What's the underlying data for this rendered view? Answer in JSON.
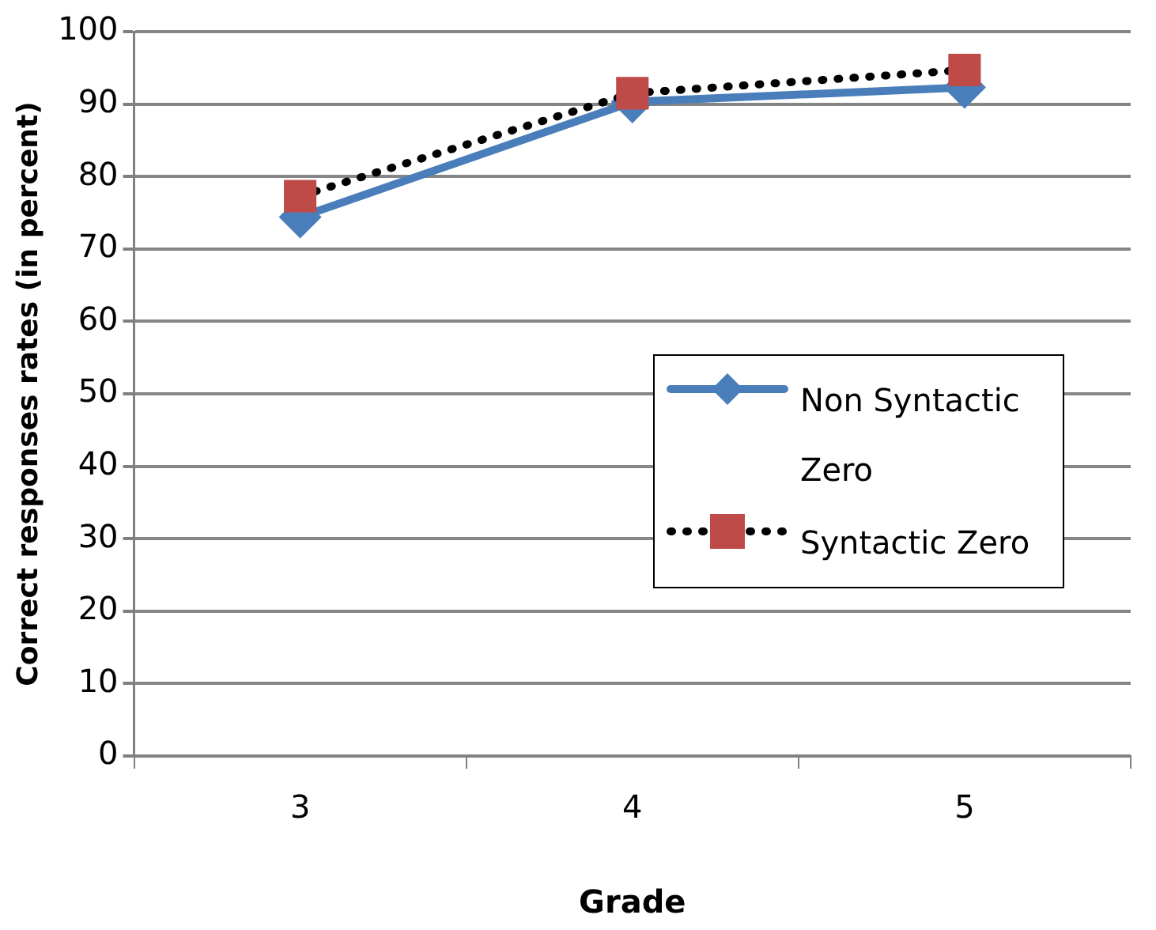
{
  "chart_data": {
    "type": "line",
    "xlabel": "Grade",
    "ylabel": "Correct responses rates (in percent)",
    "categories": [
      "3",
      "4",
      "5"
    ],
    "series": [
      {
        "name": "Non Syntactic Zero",
        "color": "#4a7ebb",
        "values": [
          74.4,
          90.3,
          92.3
        ],
        "marker": "diamond",
        "line_style": "solid"
      },
      {
        "name": " Syntactic Zero",
        "color": "#be4b48",
        "values": [
          77.3,
          91.5,
          94.7
        ],
        "marker": "square",
        "line_style": "dotted"
      }
    ],
    "ylim": [
      0,
      100
    ],
    "yticks": [
      0,
      10,
      20,
      30,
      40,
      50,
      60,
      70,
      80,
      90,
      100
    ],
    "grid": "y",
    "legend": "right"
  }
}
